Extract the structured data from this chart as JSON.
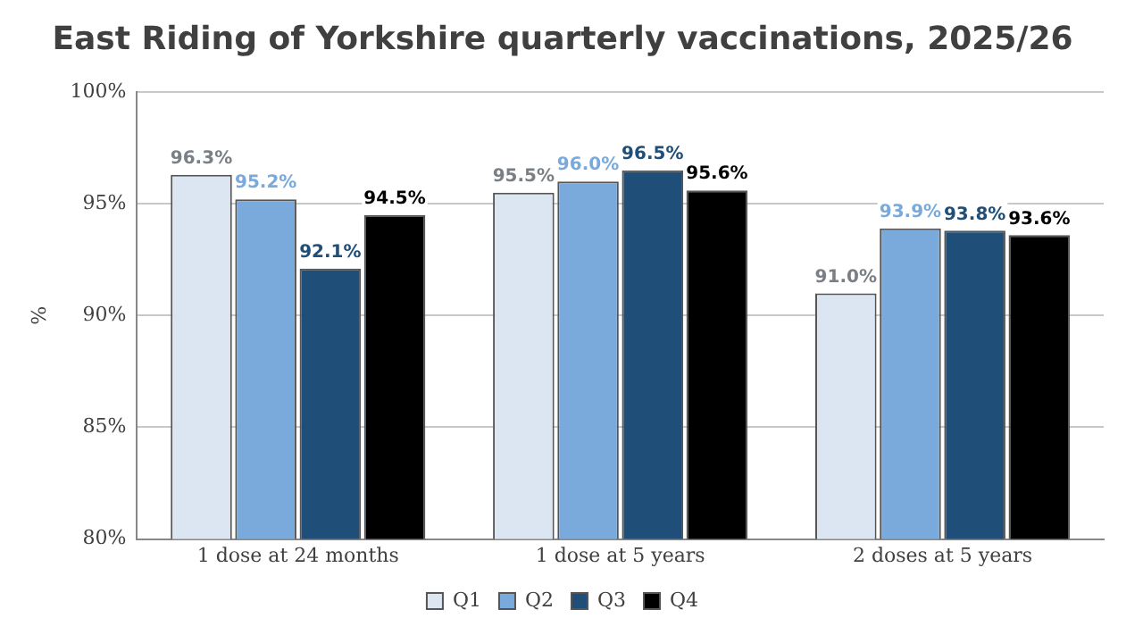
{
  "chart_data": {
    "type": "bar",
    "title": "East Riding of Yorkshire quarterly vaccinations, 2025/26",
    "ylabel": "%",
    "categories": [
      "1 dose at 24 months",
      "1 dose at 5 years",
      "2 doses at 5 years"
    ],
    "series": [
      {
        "name": "Q1",
        "color": "#dce6f2",
        "values": [
          96.3,
          95.5,
          91.0
        ],
        "value_labels": [
          "96.3%",
          "95.5%",
          "91.0%"
        ]
      },
      {
        "name": "Q2",
        "color": "#7aaadc",
        "values": [
          95.2,
          96.0,
          93.9
        ],
        "value_labels": [
          "95.2%",
          "96.0%",
          "93.9%"
        ]
      },
      {
        "name": "Q3",
        "color": "#1f4e79",
        "values": [
          92.1,
          96.5,
          93.8
        ],
        "value_labels": [
          "92.1%",
          "96.5%",
          "93.8%"
        ]
      },
      {
        "name": "Q4",
        "color": "#000000",
        "values": [
          94.5,
          95.6,
          93.6
        ],
        "value_labels": [
          "94.5%",
          "95.6%",
          "93.6%"
        ]
      }
    ],
    "ylim": [
      80,
      100
    ],
    "yticks": [
      {
        "value": 80,
        "label": "80%"
      },
      {
        "value": 85,
        "label": "85%"
      },
      {
        "value": 90,
        "label": "90%"
      },
      {
        "value": 95,
        "label": "95%"
      },
      {
        "value": 100,
        "label": "100%"
      }
    ],
    "grid": "y",
    "legend": "bottom"
  }
}
